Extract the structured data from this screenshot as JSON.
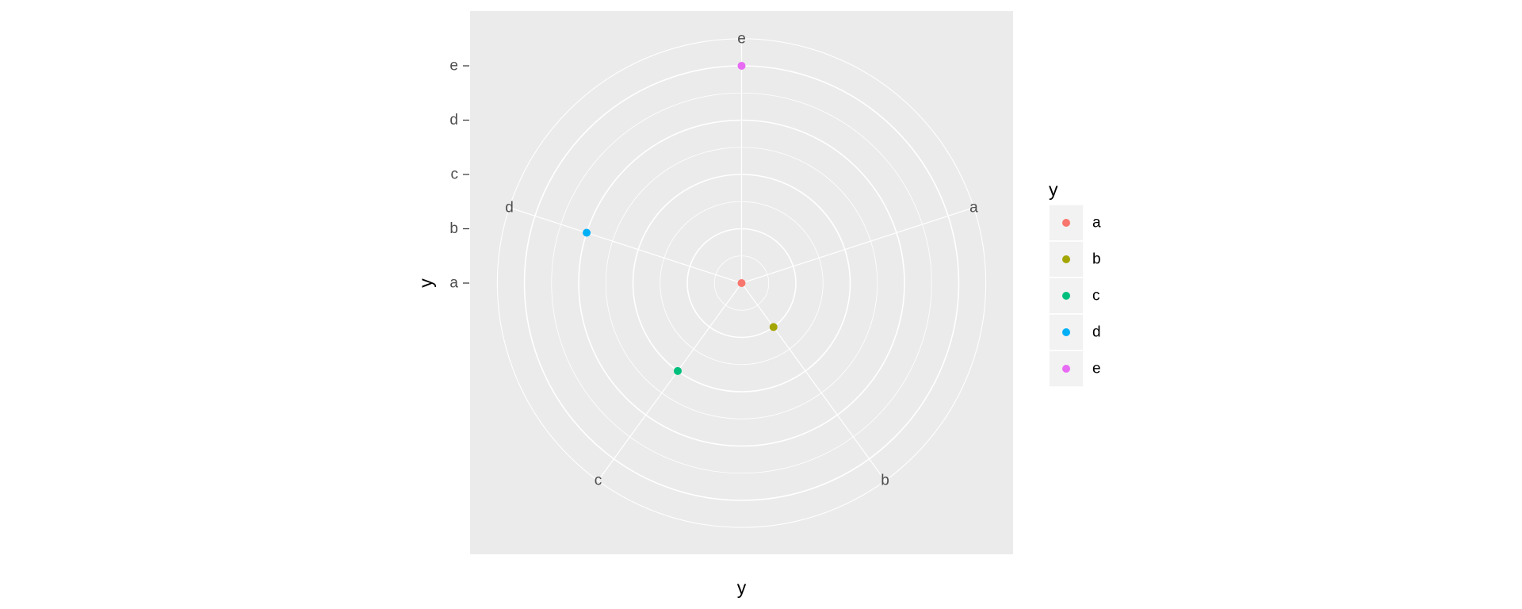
{
  "chart_data": {
    "type": "scatter",
    "coord": "polar",
    "theta_var": "y",
    "r_var": "y",
    "categories": [
      "a",
      "b",
      "c",
      "d",
      "e"
    ],
    "points": [
      {
        "theta": "a",
        "r": "a"
      },
      {
        "theta": "b",
        "r": "b"
      },
      {
        "theta": "c",
        "r": "c"
      },
      {
        "theta": "d",
        "r": "d"
      },
      {
        "theta": "e",
        "r": "e"
      }
    ],
    "r_ticks": [
      "a",
      "b",
      "c",
      "d",
      "e"
    ],
    "theta_ticks": [
      "a",
      "b",
      "c",
      "d",
      "e"
    ],
    "xlabel": "y",
    "ylabel": "y",
    "grid": true,
    "legend": {
      "title": "y",
      "position": "right",
      "entries": [
        "a",
        "b",
        "c",
        "d",
        "e"
      ]
    },
    "colors": {
      "a": "#F8766D",
      "b": "#A3A500",
      "c": "#00BF7D",
      "d": "#00B0F6",
      "e": "#E76BF3"
    },
    "panel_background": "#EBEBEB",
    "grid_color": "#FFFFFF"
  }
}
